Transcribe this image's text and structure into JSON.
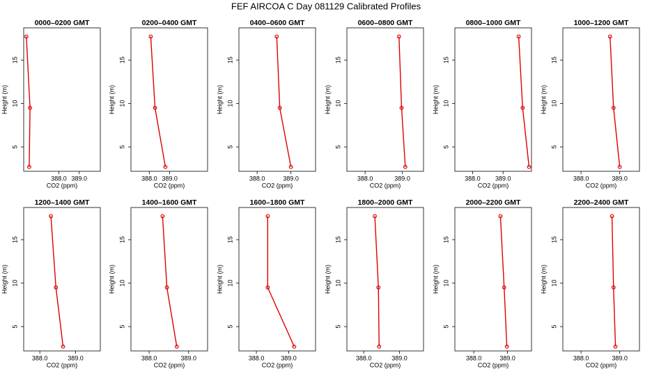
{
  "title": "FEF AIRCOA C  Day 081129  Calibrated Profiles",
  "chart_data": [
    {
      "type": "line",
      "title": "0000–0200 GMT",
      "xlabel": "CO2 (ppm)",
      "ylabel": "Height (m)",
      "color": "#dd0000",
      "x": [
        386.41,
        386.59,
        386.55
      ],
      "y": [
        17.7,
        9.5,
        2.7
      ],
      "xlim": [
        386.28,
        390.03
      ],
      "ylim": [
        2.2,
        18.7
      ],
      "xticks": [
        {
          "value": 388,
          "label": "388.0"
        },
        {
          "value": 389,
          "label": "389.0"
        }
      ],
      "yticks": [
        5,
        10,
        15
      ]
    },
    {
      "type": "line",
      "title": "0200–0400 GMT",
      "xlabel": "CO2 (ppm)",
      "ylabel": "Height (m)",
      "color": "#dd0000",
      "x": [
        388.07,
        388.28,
        388.79
      ],
      "y": [
        17.7,
        9.5,
        2.7
      ],
      "xlim": [
        387.1,
        390.86
      ],
      "ylim": [
        2.2,
        18.7
      ],
      "xticks": [
        {
          "value": 388,
          "label": "388.0"
        },
        {
          "value": 389,
          "label": "389.0"
        }
      ],
      "yticks": [
        5,
        10,
        15
      ]
    },
    {
      "type": "line",
      "title": "0400–0600 GMT",
      "xlabel": "CO2 (ppm)",
      "ylabel": "Height (m)",
      "color": "#dd0000",
      "x": [
        388.58,
        388.67,
        389.0
      ],
      "y": [
        17.7,
        9.5,
        2.7
      ],
      "xlim": [
        387.46,
        389.73
      ],
      "ylim": [
        2.2,
        18.7
      ],
      "xticks": [
        {
          "value": 388,
          "label": "388.0"
        },
        {
          "value": 389,
          "label": "389.0"
        }
      ],
      "yticks": [
        5,
        10,
        15
      ]
    },
    {
      "type": "line",
      "title": "0600–0800 GMT",
      "xlabel": "CO2 (ppm)",
      "ylabel": "Height (m)",
      "color": "#dd0000",
      "x": [
        388.91,
        388.98,
        389.08
      ],
      "y": [
        17.7,
        9.5,
        2.7
      ],
      "xlim": [
        387.51,
        389.57
      ],
      "ylim": [
        2.2,
        18.7
      ],
      "xticks": [
        {
          "value": 388,
          "label": "388.0"
        },
        {
          "value": 389,
          "label": "389.0"
        }
      ],
      "yticks": [
        5,
        10,
        15
      ]
    },
    {
      "type": "line",
      "title": "0800–1000 GMT",
      "xlabel": "CO2 (ppm)",
      "ylabel": "Height (m)",
      "color": "#dd0000",
      "x": [
        389.51,
        389.64,
        389.85
      ],
      "y": [
        17.7,
        9.5,
        2.7
      ],
      "xlim": [
        387.42,
        389.93
      ],
      "ylim": [
        2.2,
        18.7
      ],
      "xticks": [
        {
          "value": 388,
          "label": "388.0"
        },
        {
          "value": 389,
          "label": "389.0"
        }
      ],
      "yticks": [
        5,
        10,
        15
      ]
    },
    {
      "type": "line",
      "title": "1000–1200 GMT",
      "xlabel": "CO2 (ppm)",
      "ylabel": "Height (m)",
      "color": "#dd0000",
      "x": [
        388.75,
        388.84,
        389.0
      ],
      "y": [
        17.7,
        9.5,
        2.7
      ],
      "xlim": [
        387.53,
        389.51
      ],
      "ylim": [
        2.2,
        18.7
      ],
      "xticks": [
        {
          "value": 388,
          "label": "388.0"
        },
        {
          "value": 389,
          "label": "389.0"
        }
      ],
      "yticks": [
        5,
        10,
        15
      ]
    },
    {
      "type": "line",
      "title": "1200–1400 GMT",
      "xlabel": "CO2 (ppm)",
      "ylabel": "Height (m)",
      "color": "#dd0000",
      "x": [
        388.31,
        388.45,
        388.65
      ],
      "y": [
        17.7,
        9.5,
        2.7
      ],
      "xlim": [
        387.55,
        389.69
      ],
      "ylim": [
        2.2,
        18.7
      ],
      "xticks": [
        {
          "value": 388,
          "label": "388.0"
        },
        {
          "value": 389,
          "label": "389.0"
        }
      ],
      "yticks": [
        5,
        10,
        15
      ]
    },
    {
      "type": "line",
      "title": "1400–1600 GMT",
      "xlabel": "CO2 (ppm)",
      "ylabel": "Height (m)",
      "color": "#dd0000",
      "x": [
        388.34,
        388.45,
        388.7
      ],
      "y": [
        17.7,
        9.5,
        2.7
      ],
      "xlim": [
        387.54,
        389.48
      ],
      "ylim": [
        2.2,
        18.7
      ],
      "xticks": [
        {
          "value": 388,
          "label": "388.0"
        },
        {
          "value": 389,
          "label": "389.0"
        }
      ],
      "yticks": [
        5,
        10,
        15
      ]
    },
    {
      "type": "line",
      "title": "1600–1800 GMT",
      "xlabel": "CO2 (ppm)",
      "ylabel": "Height (m)",
      "color": "#dd0000",
      "x": [
        388.35,
        388.35,
        389.17
      ],
      "y": [
        17.7,
        9.5,
        2.7
      ],
      "xlim": [
        387.46,
        389.83
      ],
      "ylim": [
        2.2,
        18.7
      ],
      "xticks": [
        {
          "value": 388,
          "label": "388.0"
        },
        {
          "value": 389,
          "label": "389.0"
        }
      ],
      "yticks": [
        5,
        10,
        15
      ]
    },
    {
      "type": "line",
      "title": "1800–2000 GMT",
      "xlabel": "CO2 (ppm)",
      "ylabel": "Height (m)",
      "color": "#dd0000",
      "x": [
        388.31,
        388.41,
        388.43
      ],
      "y": [
        17.7,
        9.5,
        2.7
      ],
      "xlim": [
        387.53,
        389.67
      ],
      "ylim": [
        2.2,
        18.7
      ],
      "xticks": [
        {
          "value": 388,
          "label": "388.0"
        },
        {
          "value": 389,
          "label": "389.0"
        }
      ],
      "yticks": [
        5,
        10,
        15
      ]
    },
    {
      "type": "line",
      "title": "2000–2200 GMT",
      "xlabel": "CO2 (ppm)",
      "ylabel": "Height (m)",
      "color": "#dd0000",
      "x": [
        388.79,
        388.9,
        388.98
      ],
      "y": [
        17.7,
        9.5,
        2.7
      ],
      "xlim": [
        387.44,
        389.71
      ],
      "ylim": [
        2.2,
        18.7
      ],
      "xticks": [
        {
          "value": 388,
          "label": "388.0"
        },
        {
          "value": 389,
          "label": "389.0"
        }
      ],
      "yticks": [
        5,
        10,
        15
      ]
    },
    {
      "type": "line",
      "title": "2200–2400 GMT",
      "xlabel": "CO2 (ppm)",
      "ylabel": "Height (m)",
      "color": "#dd0000",
      "x": [
        388.8,
        388.84,
        388.89
      ],
      "y": [
        17.7,
        9.5,
        2.7
      ],
      "xlim": [
        387.53,
        389.51
      ],
      "ylim": [
        2.2,
        18.7
      ],
      "xticks": [
        {
          "value": 388,
          "label": "388.0"
        },
        {
          "value": 389,
          "label": "389.0"
        }
      ],
      "yticks": [
        5,
        10,
        15
      ]
    }
  ]
}
